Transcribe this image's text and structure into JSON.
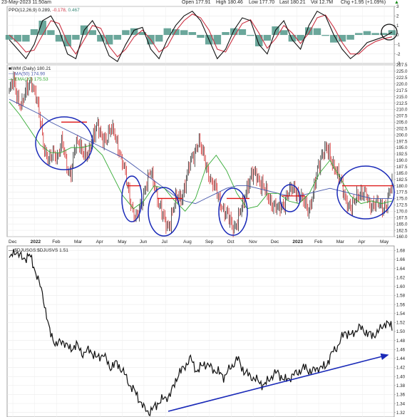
{
  "header": {
    "timestamp": "23-May-2023 11:50am",
    "open": "Open 177.91",
    "high": "High 180.46",
    "low": "Low 177.70",
    "last": "Last 180.21",
    "volume": "Vol 12.7M",
    "change": "Chg +1.95 (+1.09%)",
    "change_arrow": "▲"
  },
  "colors": {
    "price_up": "#111111",
    "price_down": "#cc1111",
    "ma50": "#4455aa",
    "ema20": "#33aa33",
    "circle": "#1a2ab8",
    "resistance": "#dd1111",
    "trend_arrow": "#1a2ab8",
    "ppo_line": "#111111",
    "ppo_signal": "#cc3344",
    "ppo_hist": "#3a8a7a",
    "ratio_line": "#111111"
  },
  "chart_data": [
    {
      "type": "line",
      "panel": "ppo",
      "legend": [
        "PPO(12,26,9) 0.289, ",
        "-0.178, ",
        "0.467"
      ],
      "ylim": [
        -3,
        3
      ],
      "y_ticks": [
        "3",
        "2",
        "1",
        "0",
        "-1",
        "-2",
        "-3"
      ],
      "series": [
        {
          "name": "PPO",
          "values": [
            -0.5,
            -1.5,
            -2.5,
            -1.0,
            1.5,
            2.0,
            0.5,
            -2.0,
            -2.5,
            0.5,
            1.5,
            0.0,
            -2.2,
            -2.8,
            -1.0,
            0.5,
            0.8,
            -1.5,
            -2.5,
            -0.5,
            1.0,
            2.0,
            2.5,
            1.5,
            -0.5,
            -2.5,
            -1.5,
            0.5,
            1.8,
            1.5,
            -1.0,
            -2.0,
            0.5,
            1.5,
            -0.5,
            -1.5,
            1.0,
            2.5,
            2.0,
            0.0,
            -1.5,
            -2.5,
            -1.8,
            -0.8,
            -0.5,
            -0.2,
            0.3
          ]
        },
        {
          "name": "Signal",
          "values": [
            0.0,
            -0.8,
            -1.8,
            -1.6,
            0.0,
            1.5,
            1.2,
            -0.8,
            -2.0,
            -0.5,
            1.0,
            0.7,
            -1.2,
            -2.3,
            -1.5,
            -0.2,
            0.5,
            -0.5,
            -1.8,
            -1.2,
            0.4,
            1.5,
            2.2,
            1.8,
            0.5,
            -1.5,
            -1.8,
            -0.2,
            1.2,
            1.6,
            0.2,
            -1.4,
            -0.4,
            1.0,
            0.2,
            -0.9,
            0.2,
            1.8,
            2.1,
            0.8,
            -0.8,
            -2.0,
            -2.0,
            -1.2,
            -0.7,
            -0.4,
            -0.2
          ]
        },
        {
          "name": "Histogram",
          "values": [
            -0.5,
            -0.7,
            -0.7,
            0.6,
            1.5,
            0.5,
            -0.7,
            -1.2,
            -0.5,
            1.0,
            0.5,
            -0.7,
            -1.0,
            -0.5,
            0.5,
            0.7,
            0.3,
            -1.0,
            -0.7,
            0.7,
            0.6,
            0.5,
            0.3,
            -0.3,
            -1.0,
            -1.0,
            0.3,
            0.7,
            0.6,
            -0.1,
            -1.2,
            -0.6,
            0.9,
            0.5,
            -0.7,
            -0.6,
            0.8,
            0.7,
            -0.1,
            -0.8,
            -0.7,
            -0.5,
            0.2,
            0.4,
            0.2,
            0.2,
            0.5
          ]
        }
      ]
    },
    {
      "type": "candlestick",
      "panel": "price",
      "legend": [
        "■IWM (Daily) 180.21",
        "— MA(50) 174.90",
        "— EMA(20) 175.53"
      ],
      "ylim": [
        160,
        227.5
      ],
      "y_ticks": [
        "227.5",
        "225.0",
        "222.5",
        "220.0",
        "217.5",
        "215.0",
        "212.5",
        "210.0",
        "207.5",
        "205.0",
        "202.5",
        "200.0",
        "197.5",
        "195.0",
        "192.5",
        "190.0",
        "187.5",
        "185.0",
        "182.5",
        "180.0",
        "177.5",
        "175.0",
        "172.5",
        "170.0",
        "167.5",
        "165.0",
        "162.5",
        "160.0"
      ],
      "close_path": [
        217,
        221,
        214,
        212,
        218,
        222,
        215,
        206,
        195,
        189,
        193,
        192,
        197,
        188,
        185,
        195,
        197,
        193,
        191,
        200,
        205,
        197,
        199,
        203,
        199,
        194,
        188,
        178,
        171,
        167,
        172,
        181,
        185,
        180,
        174,
        167,
        163,
        170,
        175,
        175,
        181,
        188,
        193,
        198,
        192,
        187,
        181,
        178,
        174,
        169,
        167,
        164,
        166,
        172,
        180,
        183,
        185,
        182,
        178,
        175,
        173,
        170,
        172,
        176,
        178,
        179,
        176,
        173,
        171,
        176,
        185,
        193,
        195,
        190,
        188,
        183,
        177,
        173,
        171,
        176,
        178,
        176,
        172,
        174,
        172,
        171,
        175,
        180
      ],
      "ma50": [
        214,
        212,
        210,
        208,
        205,
        203,
        201,
        199,
        197,
        195,
        193,
        191,
        188,
        185,
        182,
        179,
        176,
        174,
        173,
        175,
        177,
        179,
        180,
        180,
        179,
        178,
        177,
        176,
        176,
        177,
        178,
        179,
        178,
        177,
        176,
        175,
        175,
        175
      ],
      "ema20": [
        213,
        208,
        202,
        196,
        193,
        193,
        195,
        195,
        196,
        192,
        184,
        176,
        171,
        174,
        180,
        179,
        174,
        170,
        175,
        187,
        192,
        186,
        177,
        171,
        172,
        177,
        177,
        174,
        173,
        177,
        185,
        190,
        183,
        176,
        173,
        174,
        173,
        174
      ],
      "circles": [
        {
          "label": "Jan-Mar 2022"
        },
        {
          "label": "May-Jun 2022"
        },
        {
          "label": "Jun-Jul 2022"
        },
        {
          "label": "Oct 2022"
        },
        {
          "label": "Dec 2022"
        },
        {
          "label": "Mar-May 2023"
        }
      ],
      "resistance_levels": [
        {
          "period": "Feb 2022",
          "value": 205
        },
        {
          "period": "May 2022",
          "value": 180
        },
        {
          "period": "Jun-Jul 2022",
          "value": 175
        },
        {
          "period": "Oct 2022",
          "value": 175
        },
        {
          "period": "Dec 2022",
          "value": 176
        },
        {
          "period": "Mar-May 2023",
          "value": 180
        }
      ]
    },
    {
      "type": "line",
      "panel": "ratio",
      "legend": "— $DJUSGS:$DJUSVS 1.51",
      "ylim": [
        1.31,
        1.69
      ],
      "y_ticks": [
        "1.68",
        "1.66",
        "1.64",
        "1.62",
        "1.60",
        "1.58",
        "1.56",
        "1.54",
        "1.52",
        "1.50",
        "1.48",
        "1.46",
        "1.44",
        "1.42",
        "1.40",
        "1.38",
        "1.36",
        "1.34",
        "1.32"
      ],
      "x_ticks": [
        "Dec",
        "2022",
        "Feb",
        "Mar",
        "Apr",
        "May",
        "Jun",
        "Jul",
        "Aug",
        "Sep",
        "Oct",
        "Nov",
        "Dec",
        "2023",
        "Feb",
        "Mar",
        "Apr",
        "May"
      ],
      "series": [
        {
          "name": "$DJUSGS:$DJUSVS",
          "values": [
            1.66,
            1.68,
            1.66,
            1.67,
            1.63,
            1.58,
            1.5,
            1.47,
            1.48,
            1.46,
            1.47,
            1.45,
            1.46,
            1.44,
            1.45,
            1.42,
            1.43,
            1.41,
            1.38,
            1.36,
            1.33,
            1.32,
            1.34,
            1.35,
            1.36,
            1.4,
            1.42,
            1.44,
            1.41,
            1.43,
            1.42,
            1.41,
            1.4,
            1.42,
            1.44,
            1.41,
            1.4,
            1.39,
            1.38,
            1.4,
            1.41,
            1.39,
            1.4,
            1.41,
            1.42,
            1.41,
            1.42,
            1.42,
            1.45,
            1.47,
            1.5,
            1.49,
            1.51,
            1.5,
            1.49,
            1.5,
            1.52,
            1.51
          ]
        }
      ],
      "trend_arrow": {
        "direction": "up"
      }
    }
  ]
}
